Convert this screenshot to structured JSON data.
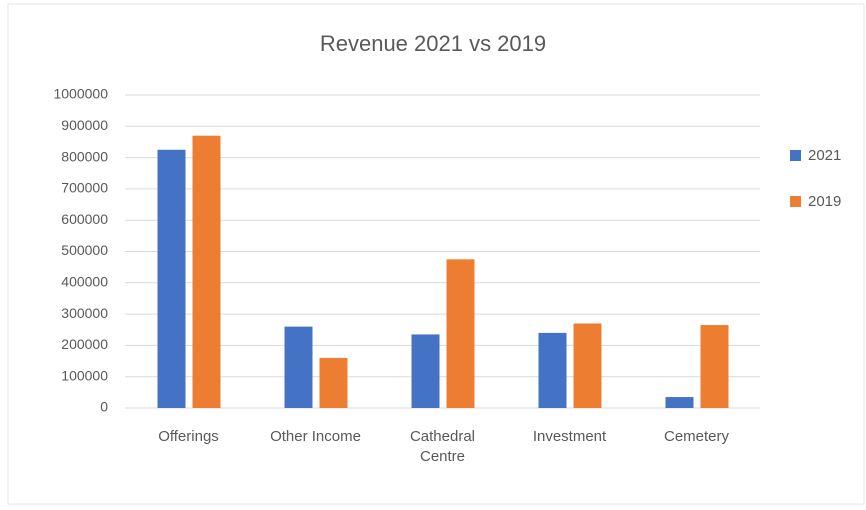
{
  "chart_data": {
    "type": "bar",
    "title": "Revenue 2021 vs 2019",
    "categories": [
      "Offerings",
      "Other Income",
      "Cathedral Centre",
      "Investment",
      "Cemetery"
    ],
    "series": [
      {
        "name": "2021",
        "color": "#4472c4",
        "values": [
          825000,
          260000,
          235000,
          240000,
          35000
        ]
      },
      {
        "name": "2019",
        "color": "#ed7d31",
        "values": [
          870000,
          160000,
          475000,
          270000,
          265000
        ]
      }
    ],
    "ylim": [
      0,
      1000000
    ],
    "yticks": [
      0,
      100000,
      200000,
      300000,
      400000,
      500000,
      600000,
      700000,
      800000,
      900000,
      1000000
    ],
    "grid": true,
    "legend": "right"
  }
}
